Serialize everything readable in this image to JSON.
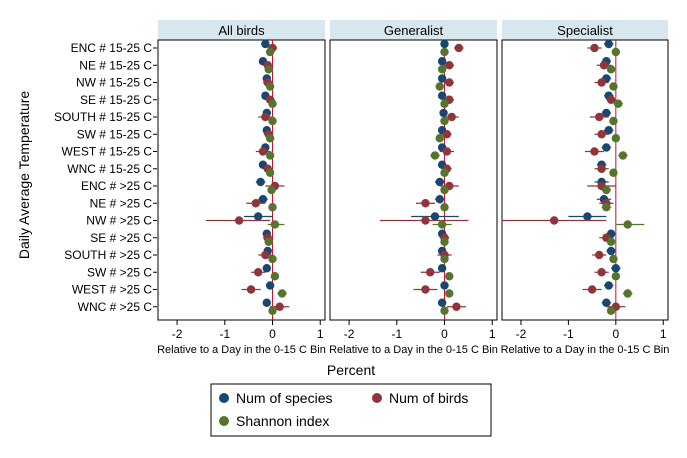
{
  "chart_data": {
    "type": "scatter",
    "ylabel": "Daily Average Temperature",
    "xlabel_panel": "Relative to a Day in the 0-15 C Bin",
    "xlabel_overall": "Percent",
    "xlim": [
      -2.4,
      1.1
    ],
    "xticks": [
      "-2",
      "-1",
      "0",
      "1"
    ],
    "xtick_values": [
      -2,
      -1,
      0,
      1
    ],
    "grid": false,
    "legend_position": "bottom",
    "categories": [
      "ENC # 15-25 C",
      "NE # 15-25 C",
      "NW # 15-25 C",
      "SE # 15-25 C",
      "SOUTH # 15-25 C",
      "SW # 15-25 C",
      "WEST # 15-25 C",
      "WNC # 15-25 C",
      "ENC # >25 C",
      "NE # >25 C",
      "NW # >25 C",
      "SE # >25 C",
      "SOUTH # >25 C",
      "SW # >25 C",
      "WEST # >25 C",
      "WNC # >25 C"
    ],
    "series_meta": [
      {
        "name": "Num of species",
        "color": "#1a476f"
      },
      {
        "name": "Num of birds",
        "color": "#90353b"
      },
      {
        "name": "Shannon index",
        "color": "#55752f"
      }
    ],
    "legend": {
      "items": [
        {
          "label": "Num of species",
          "color": "#1a476f"
        },
        {
          "label": "Num of birds",
          "color": "#90353b"
        },
        {
          "label": "Shannon index",
          "color": "#55752f"
        }
      ]
    },
    "panels": [
      {
        "title": "All birds",
        "series": [
          {
            "name": "Num of species",
            "values": [
              -0.15,
              -0.2,
              -0.12,
              -0.15,
              -0.12,
              -0.12,
              -0.15,
              -0.2,
              -0.25,
              -0.2,
              -0.3,
              -0.12,
              -0.1,
              -0.12,
              -0.05,
              -0.12
            ],
            "ci_low": [
              -0.22,
              -0.28,
              -0.2,
              -0.22,
              -0.2,
              -0.2,
              -0.22,
              -0.28,
              -0.35,
              -0.3,
              -0.6,
              -0.2,
              -0.18,
              -0.2,
              -0.12,
              -0.2
            ],
            "ci_high": [
              -0.08,
              -0.12,
              -0.05,
              -0.08,
              -0.05,
              -0.05,
              -0.08,
              -0.12,
              -0.15,
              -0.1,
              0.0,
              -0.05,
              -0.03,
              -0.05,
              0.02,
              -0.05
            ]
          },
          {
            "name": "Num of birds",
            "values": [
              0.0,
              -0.1,
              -0.1,
              -0.05,
              -0.15,
              -0.08,
              -0.2,
              -0.1,
              0.05,
              -0.35,
              -0.7,
              -0.1,
              -0.15,
              -0.3,
              -0.45,
              0.15
            ],
            "ci_low": [
              -0.1,
              -0.2,
              -0.2,
              -0.15,
              -0.3,
              -0.18,
              -0.35,
              -0.2,
              -0.15,
              -0.55,
              -1.4,
              -0.2,
              -0.3,
              -0.45,
              -0.65,
              -0.05
            ],
            "ci_high": [
              0.1,
              0.0,
              0.0,
              0.05,
              0.0,
              0.02,
              -0.05,
              0.0,
              0.25,
              -0.15,
              -0.05,
              0.0,
              0.0,
              -0.15,
              -0.25,
              0.35
            ]
          },
          {
            "name": "Shannon index",
            "values": [
              -0.05,
              -0.08,
              -0.05,
              0.0,
              0.0,
              -0.05,
              -0.05,
              -0.05,
              -0.02,
              0.0,
              0.05,
              -0.08,
              0.0,
              0.05,
              0.2,
              0.0
            ],
            "ci_low": [
              -0.12,
              -0.15,
              -0.12,
              -0.07,
              -0.07,
              -0.12,
              -0.12,
              -0.12,
              -0.1,
              -0.08,
              -0.1,
              -0.15,
              -0.08,
              -0.03,
              0.1,
              -0.08
            ],
            "ci_high": [
              0.02,
              -0.01,
              0.02,
              0.07,
              0.07,
              0.02,
              0.02,
              0.02,
              0.06,
              0.08,
              0.25,
              -0.01,
              0.08,
              0.13,
              0.3,
              0.08
            ]
          }
        ]
      },
      {
        "title": "Generalist",
        "series": [
          {
            "name": "Num of species",
            "values": [
              0.0,
              -0.05,
              -0.05,
              -0.05,
              -0.02,
              -0.05,
              -0.05,
              -0.05,
              -0.1,
              -0.1,
              -0.2,
              -0.05,
              -0.05,
              -0.05,
              0.0,
              -0.05
            ],
            "ci_low": [
              -0.07,
              -0.12,
              -0.12,
              -0.12,
              -0.1,
              -0.12,
              -0.12,
              -0.12,
              -0.2,
              -0.2,
              -0.7,
              -0.12,
              -0.12,
              -0.12,
              -0.07,
              -0.12
            ],
            "ci_high": [
              0.07,
              0.02,
              0.02,
              0.02,
              0.06,
              0.02,
              0.02,
              0.02,
              0.0,
              0.0,
              0.3,
              0.02,
              0.02,
              0.02,
              0.07,
              0.02
            ]
          },
          {
            "name": "Num of birds",
            "values": [
              0.3,
              0.1,
              0.1,
              0.1,
              0.15,
              0.05,
              0.05,
              0.05,
              0.1,
              -0.4,
              -0.4,
              0.0,
              0.0,
              -0.3,
              -0.4,
              0.25
            ],
            "ci_low": [
              0.2,
              0.0,
              0.0,
              0.0,
              0.0,
              -0.05,
              -0.1,
              -0.05,
              -0.1,
              -0.6,
              -1.35,
              -0.1,
              -0.15,
              -0.5,
              -0.65,
              0.05
            ],
            "ci_high": [
              0.4,
              0.2,
              0.2,
              0.2,
              0.3,
              0.15,
              0.2,
              0.15,
              0.3,
              -0.2,
              0.5,
              0.1,
              0.15,
              -0.1,
              -0.15,
              0.45
            ]
          },
          {
            "name": "Shannon index",
            "values": [
              0.0,
              -0.05,
              -0.1,
              0.0,
              0.0,
              -0.1,
              -0.2,
              0.0,
              0.0,
              0.0,
              -0.05,
              0.0,
              0.0,
              0.1,
              0.1,
              0.0
            ],
            "ci_low": [
              -0.07,
              -0.12,
              -0.17,
              -0.07,
              -0.07,
              -0.17,
              -0.3,
              -0.07,
              -0.08,
              -0.08,
              -0.25,
              -0.07,
              -0.07,
              0.02,
              0.02,
              -0.07
            ],
            "ci_high": [
              0.07,
              0.02,
              -0.03,
              0.07,
              0.07,
              -0.03,
              -0.1,
              0.07,
              0.08,
              0.08,
              0.15,
              0.07,
              0.07,
              0.18,
              0.18,
              0.07
            ]
          }
        ]
      },
      {
        "title": "Specialist",
        "series": [
          {
            "name": "Num of species",
            "values": [
              -0.15,
              -0.2,
              -0.2,
              -0.15,
              -0.2,
              -0.15,
              -0.2,
              -0.3,
              -0.3,
              -0.25,
              -0.6,
              -0.1,
              -0.1,
              0.0,
              -0.15,
              -0.2
            ],
            "ci_low": [
              -0.25,
              -0.3,
              -0.3,
              -0.25,
              -0.3,
              -0.25,
              -0.3,
              -0.4,
              -0.45,
              -0.4,
              -1.0,
              -0.2,
              -0.2,
              -0.1,
              -0.25,
              -0.3
            ],
            "ci_high": [
              -0.05,
              -0.1,
              -0.1,
              -0.05,
              -0.1,
              -0.05,
              -0.1,
              -0.2,
              -0.15,
              -0.1,
              -0.2,
              0.0,
              0.0,
              0.1,
              -0.05,
              -0.1
            ]
          },
          {
            "name": "Num of birds",
            "values": [
              -0.45,
              -0.25,
              -0.3,
              -0.1,
              -0.35,
              -0.3,
              -0.45,
              -0.3,
              -0.3,
              -0.2,
              -1.3,
              -0.2,
              -0.35,
              -0.3,
              -0.5,
              0.0
            ],
            "ci_low": [
              -0.6,
              -0.4,
              -0.45,
              -0.2,
              -0.55,
              -0.45,
              -0.65,
              -0.45,
              -0.6,
              -0.35,
              -2.4,
              -0.35,
              -0.5,
              -0.45,
              -0.7,
              -0.2
            ],
            "ci_high": [
              -0.3,
              -0.1,
              -0.15,
              0.0,
              -0.15,
              -0.15,
              -0.25,
              -0.15,
              0.0,
              -0.05,
              -0.2,
              -0.05,
              -0.2,
              -0.15,
              -0.3,
              0.2
            ]
          },
          {
            "name": "Shannon index",
            "values": [
              0.0,
              -0.1,
              -0.05,
              0.05,
              -0.05,
              0.0,
              0.15,
              -0.05,
              -0.2,
              -0.2,
              0.25,
              -0.1,
              -0.05,
              0.0,
              0.25,
              -0.1
            ],
            "ci_low": [
              -0.08,
              -0.18,
              -0.13,
              -0.05,
              -0.13,
              -0.08,
              0.05,
              -0.13,
              -0.3,
              -0.3,
              0.0,
              -0.18,
              -0.13,
              -0.08,
              0.15,
              -0.18
            ],
            "ci_high": [
              0.08,
              -0.02,
              0.03,
              0.15,
              0.03,
              0.08,
              0.25,
              0.03,
              -0.1,
              -0.1,
              0.6,
              -0.02,
              0.03,
              0.08,
              0.35,
              -0.02
            ]
          }
        ]
      }
    ]
  }
}
